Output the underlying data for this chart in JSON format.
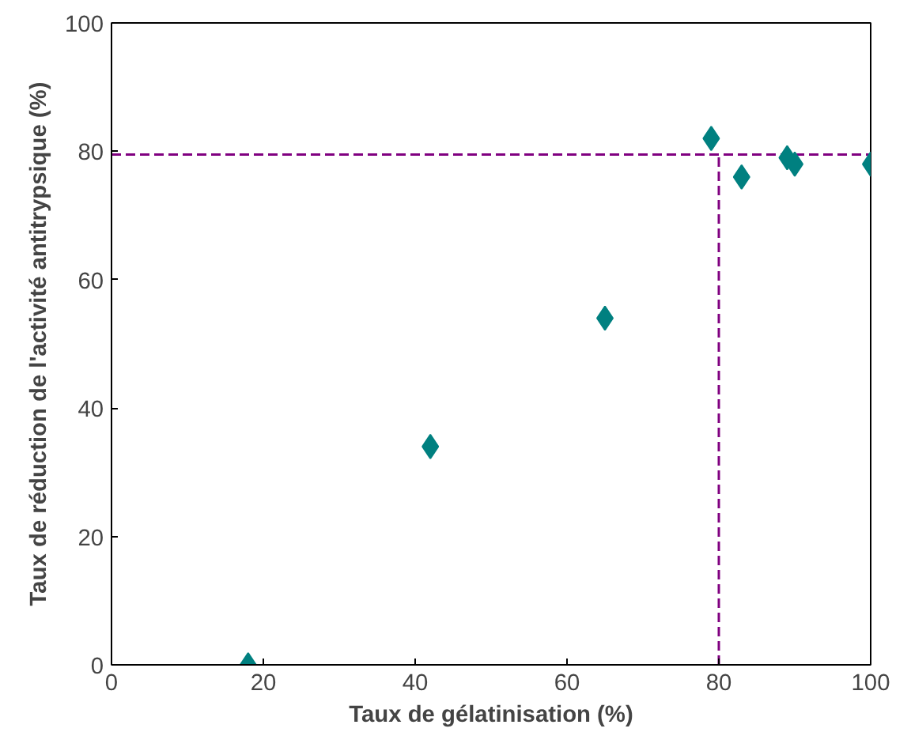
{
  "chart_data": {
    "type": "scatter",
    "xlabel": "Taux de gélatinisation (%)",
    "ylabel": "Taux de réduction de l'activité antitrypsique (%)",
    "x": [
      18,
      42,
      65,
      79,
      83,
      89,
      90,
      100
    ],
    "series": [
      {
        "color": "#008080",
        "values": [
          0,
          34,
          54,
          82,
          76,
          79,
          78,
          78
        ]
      }
    ],
    "marker": "diamond",
    "grid": false,
    "xlim": [
      0,
      100
    ],
    "xticks": [
      0,
      20,
      40,
      60,
      80,
      100
    ],
    "ylim": [
      0,
      100
    ],
    "yticks": [
      0,
      20,
      40,
      60,
      80,
      100
    ],
    "ref_lines": [
      {
        "axis": "y",
        "value": 79.5,
        "color": "#800080",
        "line_style": "dashed"
      },
      {
        "axis": "x",
        "value": 80,
        "color": "#800080",
        "line_style": "dashed"
      }
    ]
  }
}
